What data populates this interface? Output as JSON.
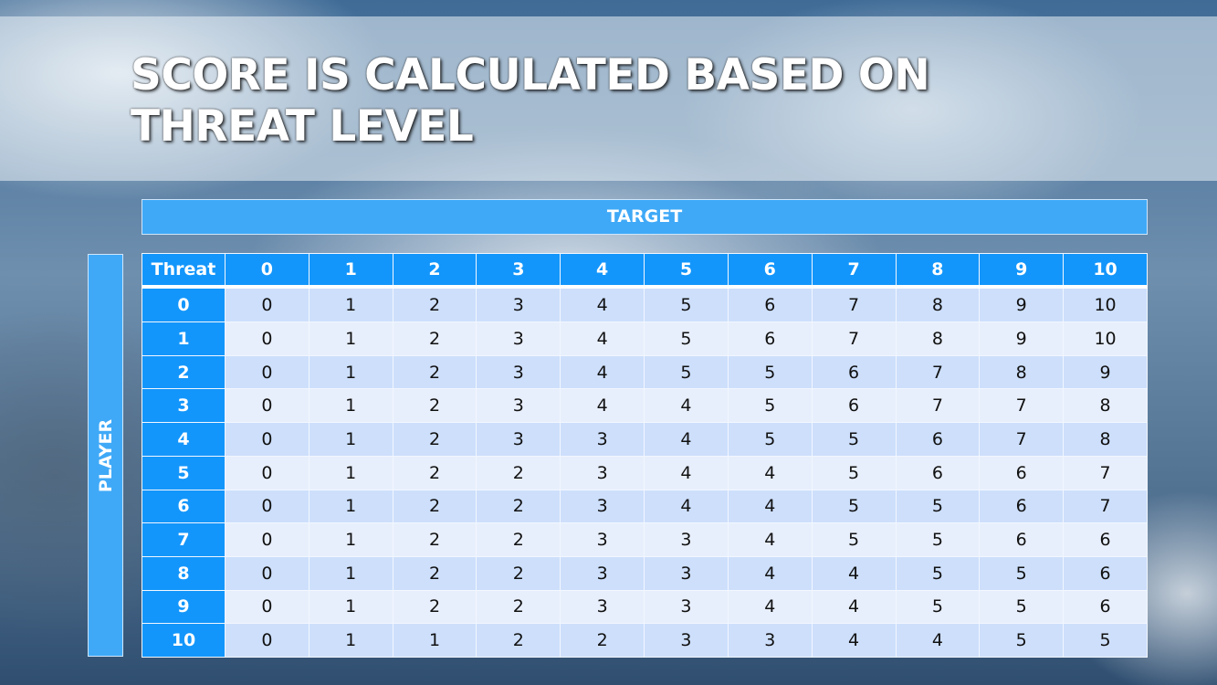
{
  "title": "SCORE IS CALCULATED BASED ON THREAT LEVEL",
  "title_line1": "SCORE IS CALCULATED BASED ON",
  "title_line2": "THREAT LEVEL",
  "column_axis_label": "TARGET",
  "row_axis_label": "PLAYER",
  "table": {
    "corner_header": "Threat",
    "column_headers": [
      "0",
      "1",
      "2",
      "3",
      "4",
      "5",
      "6",
      "7",
      "8",
      "9",
      "10"
    ],
    "rows": [
      {
        "threat": "0",
        "values": [
          "0",
          "1",
          "2",
          "3",
          "4",
          "5",
          "6",
          "7",
          "8",
          "9",
          "10"
        ]
      },
      {
        "threat": "1",
        "values": [
          "0",
          "1",
          "2",
          "3",
          "4",
          "5",
          "6",
          "7",
          "8",
          "9",
          "10"
        ]
      },
      {
        "threat": "2",
        "values": [
          "0",
          "1",
          "2",
          "3",
          "4",
          "5",
          "5",
          "6",
          "7",
          "8",
          "9"
        ]
      },
      {
        "threat": "3",
        "values": [
          "0",
          "1",
          "2",
          "3",
          "4",
          "4",
          "5",
          "6",
          "7",
          "7",
          "8"
        ]
      },
      {
        "threat": "4",
        "values": [
          "0",
          "1",
          "2",
          "3",
          "3",
          "4",
          "5",
          "5",
          "6",
          "7",
          "8"
        ]
      },
      {
        "threat": "5",
        "values": [
          "0",
          "1",
          "2",
          "2",
          "3",
          "4",
          "4",
          "5",
          "6",
          "6",
          "7"
        ]
      },
      {
        "threat": "6",
        "values": [
          "0",
          "1",
          "2",
          "2",
          "3",
          "4",
          "4",
          "5",
          "5",
          "6",
          "7"
        ]
      },
      {
        "threat": "7",
        "values": [
          "0",
          "1",
          "2",
          "2",
          "3",
          "3",
          "4",
          "5",
          "5",
          "6",
          "6"
        ]
      },
      {
        "threat": "8",
        "values": [
          "0",
          "1",
          "2",
          "2",
          "3",
          "3",
          "4",
          "4",
          "5",
          "5",
          "6"
        ]
      },
      {
        "threat": "9",
        "values": [
          "0",
          "1",
          "2",
          "2",
          "3",
          "3",
          "4",
          "4",
          "5",
          "5",
          "6"
        ]
      },
      {
        "threat": "10",
        "values": [
          "0",
          "1",
          "1",
          "2",
          "2",
          "3",
          "3",
          "4",
          "4",
          "5",
          "5"
        ]
      }
    ]
  },
  "colors": {
    "header": "#1396fb",
    "axis_bar": "#3fa9f7",
    "row_odd": "#cddffb",
    "row_even": "#e8effc"
  }
}
